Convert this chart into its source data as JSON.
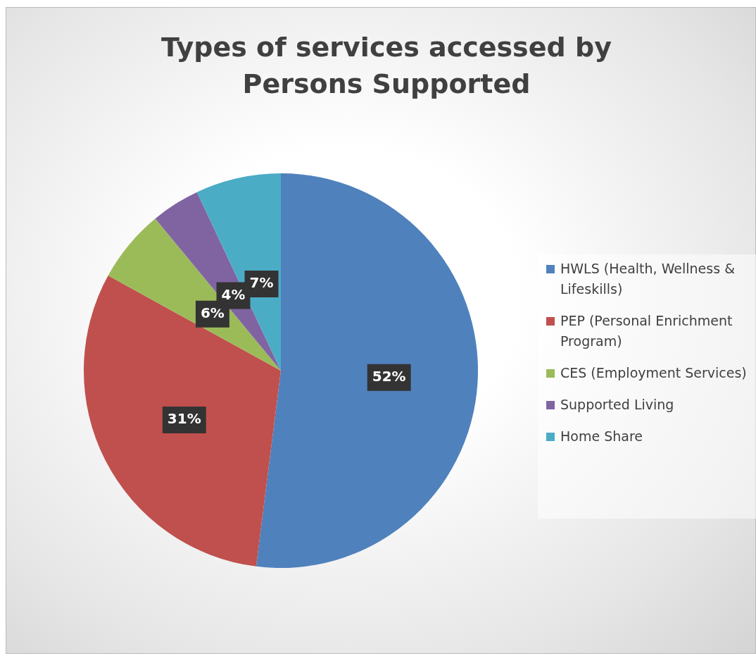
{
  "chart_data": {
    "type": "pie",
    "title": "Types of services accessed by Persons Supported",
    "categories": [
      "HWLS (Health, Wellness & Lifeskills)",
      "PEP (Personal Enrichment Program)",
      "CES (Employment Services)",
      "Supported Living",
      "Home Share"
    ],
    "values": [
      52,
      31,
      6,
      4,
      7
    ],
    "colors": [
      "#4f81bd",
      "#c0504d",
      "#9bbb59",
      "#8064a2",
      "#4bacc6"
    ],
    "value_labels": [
      "52%",
      "31%",
      "6%",
      "4%",
      "7%"
    ],
    "legend": "right"
  }
}
